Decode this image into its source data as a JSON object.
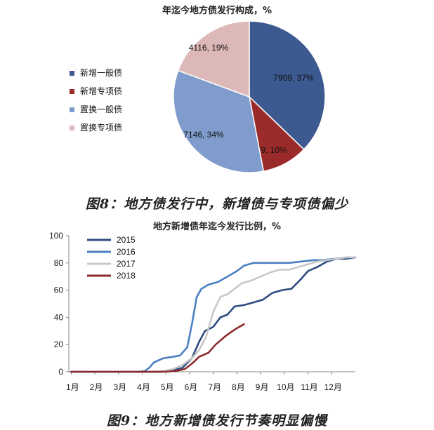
{
  "figures": [
    {
      "caption": "图8：地方债发行中，新增债与专项债偏少",
      "chart_data": {
        "type": "pie",
        "title": "年迄今地方债发行构成，%",
        "slices": [
          {
            "name": "新增一般债",
            "value": 7909,
            "percent": 37,
            "label": "7909, 37%",
            "color": "#3d5a90"
          },
          {
            "name": "新增专项债",
            "value": 2079,
            "percent": 10,
            "label": "2079, 10%",
            "color": "#9b2b2b"
          },
          {
            "name": "置换一般债",
            "value": 7146,
            "percent": 34,
            "label": "7146, 34%",
            "color": "#7f9ccc"
          },
          {
            "name": "置换专项债",
            "value": 4116,
            "percent": 19,
            "label": "4116, 19%",
            "color": "#ddb8b8"
          }
        ],
        "legend": "left"
      }
    },
    {
      "caption": "图9：地方新增债发行节奏明显偏慢",
      "chart_data": {
        "type": "line",
        "title": "地方新增债年迄今发行比例，%",
        "xlabel": "",
        "ylabel": "",
        "categories": [
          "1月",
          "2月",
          "3月",
          "4月",
          "5月",
          "6月",
          "7月",
          "8月",
          "9月",
          "10月",
          "11月",
          "12月"
        ],
        "x_range": [
          0.9,
          13
        ],
        "ylim": [
          0,
          100
        ],
        "yticks": [
          0,
          20,
          40,
          60,
          80,
          100
        ],
        "legend": "top-left",
        "series": [
          {
            "name": "2015",
            "color": "#2c4c80",
            "points": [
              [
                1,
                0
              ],
              [
                3.7,
                0
              ],
              [
                4.8,
                0
              ],
              [
                5.2,
                0.5
              ],
              [
                5.7,
                3
              ],
              [
                6.1,
                10
              ],
              [
                6.4,
                22
              ],
              [
                6.65,
                30
              ],
              [
                7.0,
                33
              ],
              [
                7.3,
                40
              ],
              [
                7.6,
                42
              ],
              [
                7.9,
                48
              ],
              [
                8.3,
                49
              ],
              [
                8.7,
                51
              ],
              [
                9.1,
                53
              ],
              [
                9.5,
                58
              ],
              [
                9.9,
                60
              ],
              [
                10.3,
                61
              ],
              [
                10.7,
                68
              ],
              [
                11.0,
                74
              ],
              [
                11.4,
                77
              ],
              [
                11.8,
                81
              ],
              [
                12.2,
                83
              ],
              [
                12.6,
                83
              ],
              [
                13,
                84
              ]
            ]
          },
          {
            "name": "2016",
            "color": "#4a7fc1",
            "points": [
              [
                1,
                0
              ],
              [
                3.8,
                0
              ],
              [
                4.1,
                0.5
              ],
              [
                4.3,
                3
              ],
              [
                4.5,
                7
              ],
              [
                4.9,
                10
              ],
              [
                5.3,
                11
              ],
              [
                5.6,
                12
              ],
              [
                5.9,
                18
              ],
              [
                6.1,
                35
              ],
              [
                6.3,
                55
              ],
              [
                6.5,
                61
              ],
              [
                6.8,
                64
              ],
              [
                7.2,
                66
              ],
              [
                7.6,
                70
              ],
              [
                8.0,
                74
              ],
              [
                8.3,
                78
              ],
              [
                8.7,
                80
              ],
              [
                9.2,
                80
              ],
              [
                9.7,
                80
              ],
              [
                10.2,
                80
              ],
              [
                10.7,
                81
              ],
              [
                11.2,
                82
              ],
              [
                11.6,
                82
              ],
              [
                12.1,
                83
              ],
              [
                12.6,
                84
              ],
              [
                13,
                84
              ]
            ]
          },
          {
            "name": "2017",
            "color": "#c8c8c8",
            "points": [
              [
                1,
                0
              ],
              [
                4.2,
                0
              ],
              [
                4.9,
                0.5
              ],
              [
                5.3,
                2
              ],
              [
                5.7,
                5
              ],
              [
                6.1,
                10
              ],
              [
                6.4,
                16
              ],
              [
                6.7,
                26
              ],
              [
                7.0,
                44
              ],
              [
                7.3,
                55
              ],
              [
                7.6,
                57
              ],
              [
                7.9,
                61
              ],
              [
                8.2,
                65
              ],
              [
                8.6,
                67
              ],
              [
                9.0,
                70
              ],
              [
                9.4,
                73
              ],
              [
                9.8,
                75
              ],
              [
                10.2,
                75
              ],
              [
                10.6,
                77
              ],
              [
                11.0,
                79
              ],
              [
                11.4,
                81
              ],
              [
                11.8,
                82
              ],
              [
                12.2,
                83
              ],
              [
                12.6,
                84
              ],
              [
                13,
                84
              ]
            ]
          },
          {
            "name": "2018",
            "color": "#8c2a2a",
            "points": [
              [
                1,
                0
              ],
              [
                4.9,
                0
              ],
              [
                5.4,
                0.5
              ],
              [
                5.8,
                2
              ],
              [
                6.1,
                6
              ],
              [
                6.4,
                11
              ],
              [
                6.8,
                14
              ],
              [
                7.1,
                20
              ],
              [
                7.5,
                26
              ],
              [
                7.9,
                31
              ],
              [
                8.3,
                35
              ]
            ]
          }
        ]
      }
    }
  ]
}
